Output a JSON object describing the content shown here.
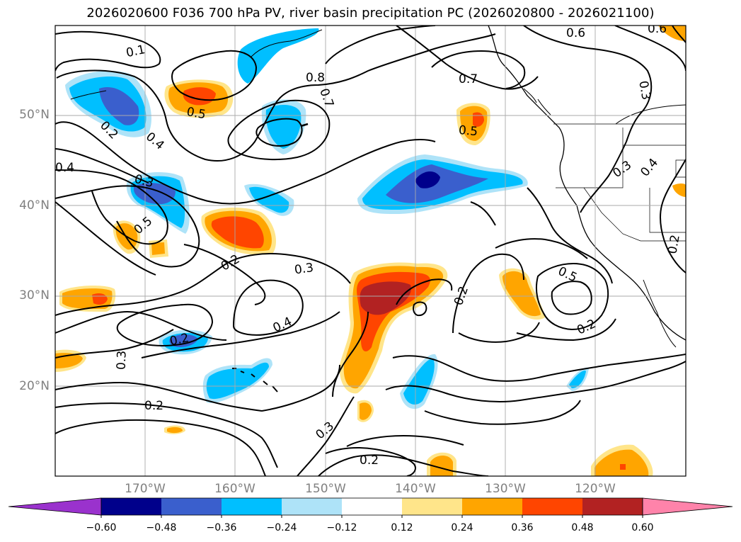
{
  "title": "2026020600 F036 700 hPa PV, river basin precipitation PC (2026020800 - 2026021100)",
  "map": {
    "latitude_labels": [
      "50°N",
      "40°N",
      "30°N",
      "20°N"
    ],
    "longitude_labels": [
      "170°W",
      "160°W",
      "150°W",
      "140°W",
      "130°W",
      "120°W"
    ],
    "pv_contour_labels": [
      "0.1",
      "0.8",
      "0.7",
      "0.6",
      "0.6",
      "0.7",
      "0.3",
      "0.5",
      "0.5",
      "0.2",
      "0.4",
      "0.4",
      "0.3",
      "0.5",
      "0.2",
      "0.3",
      "0.3",
      "0.4",
      "0.2",
      "0.4",
      "0.5",
      "0.2",
      "0.3",
      "0.2",
      "0.3",
      "0.2",
      "0.2",
      "0.2"
    ]
  },
  "colorbar": {
    "tick_labels": [
      "−0.60",
      "−0.48",
      "−0.36",
      "−0.24",
      "−0.12",
      "0.12",
      "0.24",
      "0.36",
      "0.48",
      "0.60"
    ],
    "colors": [
      "#9a32cd",
      "#00008b",
      "#3a5fcd",
      "#00bfff",
      "#aee3f8",
      "#ffffff",
      "#ffe58a",
      "#ffa500",
      "#ff4500",
      "#b22222",
      "#ff83aa"
    ]
  }
}
